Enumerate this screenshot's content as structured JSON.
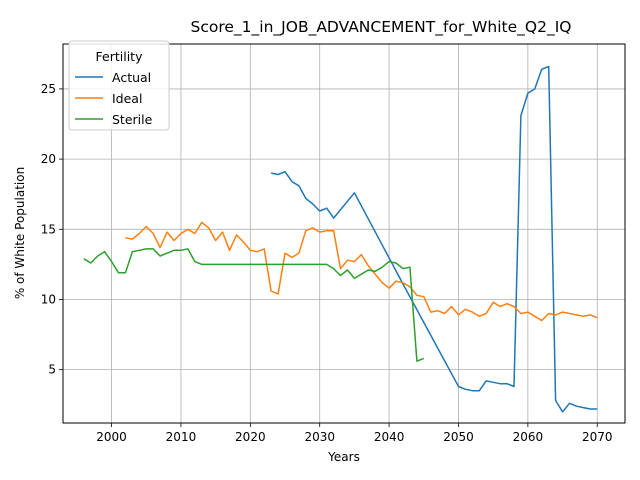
{
  "chart_data": {
    "type": "line",
    "title": "Score_1_in_JOB_ADVANCEMENT_for_White_Q2_IQ",
    "xlabel": "Years",
    "ylabel": "% of White Population",
    "xlim": [
      1993,
      2074
    ],
    "ylim": [
      1.2,
      28.2
    ],
    "xticks": [
      2000,
      2010,
      2020,
      2030,
      2040,
      2050,
      2060,
      2070
    ],
    "yticks": [
      5,
      10,
      15,
      20,
      25
    ],
    "grid": true,
    "legend": {
      "title": "Fertility",
      "placement": "top-left"
    },
    "series": [
      {
        "name": "Actual",
        "color": "#1f77b4",
        "points": [
          [
            2023,
            19.0
          ],
          [
            2024,
            18.9
          ],
          [
            2025,
            19.1
          ],
          [
            2026,
            18.4
          ],
          [
            2027,
            18.1
          ],
          [
            2028,
            17.2
          ],
          [
            2029,
            16.8
          ],
          [
            2030,
            16.3
          ],
          [
            2031,
            16.5
          ],
          [
            2032,
            15.8
          ],
          [
            2035,
            17.6
          ],
          [
            2042,
            11.1
          ],
          [
            2050,
            3.8
          ],
          [
            2051,
            3.6
          ],
          [
            2052,
            3.5
          ],
          [
            2053,
            3.5
          ],
          [
            2054,
            4.2
          ],
          [
            2055,
            4.1
          ],
          [
            2056,
            4.0
          ],
          [
            2057,
            4.0
          ],
          [
            2058,
            3.8
          ],
          [
            2059,
            23.1
          ],
          [
            2060,
            24.7
          ],
          [
            2061,
            25.0
          ],
          [
            2062,
            26.4
          ],
          [
            2063,
            26.6
          ],
          [
            2064,
            2.8
          ],
          [
            2065,
            2.0
          ],
          [
            2066,
            2.6
          ],
          [
            2067,
            2.4
          ],
          [
            2068,
            2.3
          ],
          [
            2069,
            2.2
          ],
          [
            2070,
            2.2
          ]
        ]
      },
      {
        "name": "Ideal",
        "color": "#ff7f0e",
        "points": [
          [
            2002,
            14.4
          ],
          [
            2003,
            14.3
          ],
          [
            2004,
            14.7
          ],
          [
            2005,
            15.2
          ],
          [
            2006,
            14.7
          ],
          [
            2007,
            13.7
          ],
          [
            2008,
            14.8
          ],
          [
            2009,
            14.2
          ],
          [
            2010,
            14.7
          ],
          [
            2011,
            15.0
          ],
          [
            2012,
            14.7
          ],
          [
            2013,
            15.5
          ],
          [
            2014,
            15.1
          ],
          [
            2015,
            14.2
          ],
          [
            2016,
            14.8
          ],
          [
            2017,
            13.5
          ],
          [
            2018,
            14.6
          ],
          [
            2019,
            14.1
          ],
          [
            2020,
            13.5
          ],
          [
            2021,
            13.4
          ],
          [
            2022,
            13.6
          ],
          [
            2023,
            10.6
          ],
          [
            2024,
            10.4
          ],
          [
            2025,
            13.3
          ],
          [
            2026,
            13.0
          ],
          [
            2027,
            13.3
          ],
          [
            2028,
            14.9
          ],
          [
            2029,
            15.1
          ],
          [
            2030,
            14.8
          ],
          [
            2031,
            14.9
          ],
          [
            2032,
            14.9
          ],
          [
            2033,
            12.2
          ],
          [
            2034,
            12.8
          ],
          [
            2035,
            12.7
          ],
          [
            2036,
            13.2
          ],
          [
            2037,
            12.4
          ],
          [
            2038,
            11.8
          ],
          [
            2039,
            11.2
          ],
          [
            2040,
            10.8
          ],
          [
            2041,
            11.3
          ],
          [
            2042,
            11.2
          ],
          [
            2043,
            10.9
          ],
          [
            2044,
            10.3
          ],
          [
            2045,
            10.2
          ],
          [
            2046,
            9.1
          ],
          [
            2047,
            9.2
          ],
          [
            2048,
            9.0
          ],
          [
            2049,
            9.5
          ],
          [
            2050,
            8.9
          ],
          [
            2051,
            9.3
          ],
          [
            2052,
            9.1
          ],
          [
            2053,
            8.8
          ],
          [
            2054,
            9.0
          ],
          [
            2055,
            9.8
          ],
          [
            2056,
            9.5
          ],
          [
            2057,
            9.7
          ],
          [
            2058,
            9.5
          ],
          [
            2059,
            9.0
          ],
          [
            2060,
            9.1
          ],
          [
            2061,
            8.8
          ],
          [
            2062,
            8.5
          ],
          [
            2063,
            9.0
          ],
          [
            2064,
            8.9
          ],
          [
            2065,
            9.1
          ],
          [
            2066,
            9.0
          ],
          [
            2067,
            8.9
          ],
          [
            2068,
            8.8
          ],
          [
            2069,
            8.9
          ],
          [
            2070,
            8.7
          ]
        ]
      },
      {
        "name": "Sterile",
        "color": "#2ca02c",
        "points": [
          [
            1996,
            12.9
          ],
          [
            1997,
            12.6
          ],
          [
            1998,
            13.1
          ],
          [
            1999,
            13.4
          ],
          [
            2000,
            12.7
          ],
          [
            2001,
            11.9
          ],
          [
            2002,
            11.9
          ],
          [
            2003,
            13.4
          ],
          [
            2004,
            13.5
          ],
          [
            2005,
            13.6
          ],
          [
            2006,
            13.6
          ],
          [
            2007,
            13.1
          ],
          [
            2008,
            13.3
          ],
          [
            2009,
            13.5
          ],
          [
            2010,
            13.5
          ],
          [
            2011,
            13.6
          ],
          [
            2012,
            12.7
          ],
          [
            2013,
            12.5
          ],
          [
            2014,
            12.5
          ],
          [
            2015,
            12.5
          ],
          [
            2030,
            12.5
          ],
          [
            2031,
            12.5
          ],
          [
            2032,
            12.2
          ],
          [
            2033,
            11.7
          ],
          [
            2034,
            12.1
          ],
          [
            2035,
            11.5
          ],
          [
            2036,
            11.8
          ],
          [
            2037,
            12.1
          ],
          [
            2038,
            12.0
          ],
          [
            2039,
            12.3
          ],
          [
            2040,
            12.7
          ],
          [
            2041,
            12.6
          ],
          [
            2042,
            12.2
          ],
          [
            2043,
            12.3
          ],
          [
            2044,
            5.6
          ],
          [
            2045,
            5.8
          ]
        ]
      }
    ]
  }
}
